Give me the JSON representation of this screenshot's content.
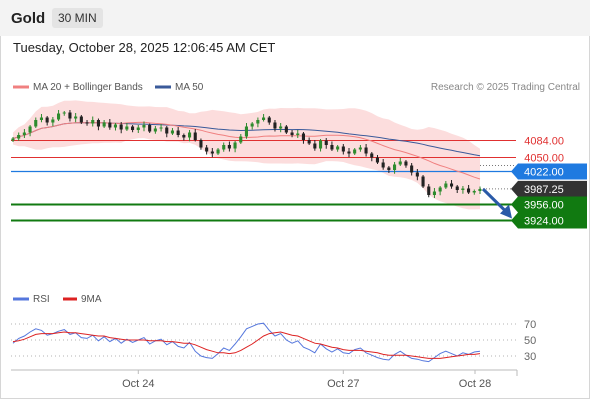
{
  "header": {
    "symbol": "Gold",
    "timeframe": "30 MIN",
    "datetime": "Tuesday, October 28, 2025 12:06:45 AM CET"
  },
  "legend": {
    "ma20_label": "MA 20 + Bollinger Bands",
    "ma50_label": "MA 50",
    "credit": "Research © 2025 Trading Central",
    "rsi_label": "RSI",
    "rsi_ma_label": "9MA"
  },
  "colors": {
    "ma20": "#f08080",
    "ma50": "#3a5a9a",
    "bb_fill": "#fcd9d9",
    "candle_up": "#2e8b2e",
    "candle_down": "#222222",
    "resistance": "#e03030",
    "pivot": "#1f7ae0",
    "support": "#117a11",
    "last_price": "#333333",
    "rsi": "#5577dd",
    "rsi_ma": "#dd2222",
    "arrow": "#2a5aa8"
  },
  "chart_data": [
    {
      "type": "candlestick",
      "title": "Gold 30 MIN",
      "x_tick_labels": [
        "Oct 24",
        "Oct 27",
        "Oct 28"
      ],
      "y_range": [
        3885,
        4165
      ],
      "levels": [
        {
          "label": "4084.00",
          "value": 4084.0,
          "role": "resistance"
        },
        {
          "label": "4050.00",
          "value": 4050.0,
          "role": "resistance"
        },
        {
          "label": "4022.00",
          "value": 4022.0,
          "role": "pivot"
        },
        {
          "label": "3987.25",
          "value": 3987.25,
          "role": "last_price"
        },
        {
          "label": "3956.00",
          "value": 3956.0,
          "role": "support"
        },
        {
          "label": "3924.00",
          "value": 3924.0,
          "role": "support"
        }
      ],
      "series_close": [
        4088,
        4095,
        4100,
        4112,
        4125,
        4130,
        4120,
        4126,
        4138,
        4140,
        4128,
        4132,
        4120,
        4118,
        4125,
        4112,
        4120,
        4110,
        4116,
        4106,
        4112,
        4105,
        4110,
        4115,
        4102,
        4108,
        4110,
        4098,
        4104,
        4095,
        4090,
        4100,
        4085,
        4070,
        4062,
        4058,
        4066,
        4075,
        4068,
        4080,
        4092,
        4112,
        4118,
        4125,
        4130,
        4120,
        4108,
        4112,
        4100,
        4095,
        4098,
        4085,
        4078,
        4068,
        4084,
        4075,
        4066,
        4072,
        4062,
        4058,
        4066,
        4070,
        4058,
        4050,
        4040,
        4030,
        4025,
        4036,
        4042,
        4034,
        4020,
        4012,
        3992,
        3975,
        3982,
        3990,
        3998,
        3992,
        3985,
        3988,
        3980,
        3983,
        3987
      ]
    },
    {
      "type": "line",
      "title": "RSI",
      "series": [
        {
          "name": "RSI"
        },
        {
          "name": "9MA"
        }
      ],
      "y_tick_labels": [
        "70",
        "50",
        "30"
      ],
      "y_range": [
        15,
        85
      ],
      "rsi": [
        46,
        52,
        55,
        60,
        64,
        62,
        56,
        58,
        61,
        63,
        57,
        59,
        53,
        52,
        56,
        49,
        54,
        48,
        52,
        46,
        51,
        47,
        50,
        53,
        45,
        49,
        51,
        44,
        48,
        42,
        40,
        47,
        36,
        30,
        28,
        27,
        33,
        40,
        37,
        45,
        54,
        64,
        67,
        70,
        71,
        62,
        55,
        58,
        50,
        46,
        49,
        41,
        38,
        34,
        45,
        39,
        35,
        39,
        34,
        33,
        38,
        40,
        34,
        31,
        28,
        26,
        25,
        32,
        36,
        31,
        27,
        26,
        24,
        23,
        28,
        33,
        36,
        33,
        30,
        34,
        32,
        35,
        36
      ],
      "rsi_ma": [
        48,
        49,
        51,
        54,
        57,
        58,
        58,
        58,
        59,
        60,
        59,
        59,
        58,
        57,
        56,
        55,
        55,
        53,
        52,
        51,
        50,
        50,
        50,
        50,
        49,
        49,
        49,
        48,
        48,
        47,
        46,
        46,
        44,
        41,
        38,
        36,
        34,
        34,
        33,
        34,
        37,
        41,
        45,
        50,
        55,
        58,
        59,
        60,
        58,
        56,
        55,
        52,
        49,
        46,
        45,
        43,
        41,
        40,
        38,
        37,
        37,
        37,
        36,
        35,
        34,
        32,
        31,
        31,
        31,
        31,
        30,
        29,
        28,
        27,
        27,
        27,
        28,
        29,
        30,
        31,
        32,
        32,
        33
      ]
    }
  ]
}
